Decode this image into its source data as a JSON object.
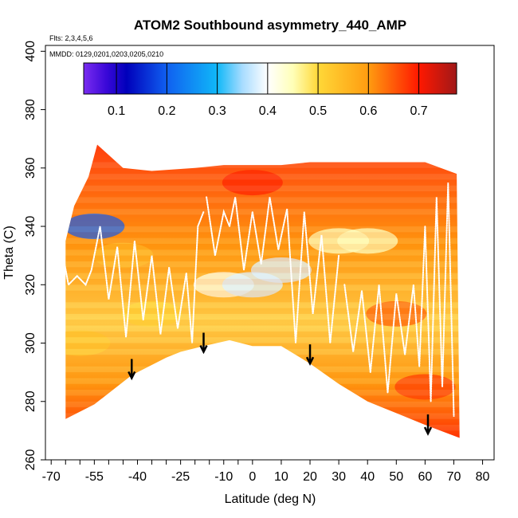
{
  "chart_data": {
    "type": "heatmap",
    "title": "ATOM2 Southbound asymmetry_440_AMP",
    "subtitle_flights": "Flts: 2,3,4,5,6",
    "subtitle_dates": "MMDD: 0129,0201,0203,0205,0210",
    "xlabel": "Latitude (deg N)",
    "ylabel": "Theta (C)",
    "xlim": [
      -72,
      84
    ],
    "ylim": [
      260,
      402
    ],
    "x_ticks": [
      -70,
      -55,
      -40,
      -25,
      -10,
      0,
      10,
      20,
      30,
      40,
      50,
      60,
      70,
      80
    ],
    "x_tick_labels": [
      "-70",
      "-55",
      "-40",
      "-25",
      "-10",
      "0",
      "10",
      "20",
      "30",
      "40",
      "50",
      "60",
      "70",
      "80"
    ],
    "x_minor_ticks": [
      -65,
      -60,
      -50,
      -45,
      -35,
      -30,
      -20,
      -15,
      -5
    ],
    "y_ticks": [
      260,
      280,
      300,
      320,
      340,
      360,
      380,
      400
    ],
    "y_tick_labels": [
      "260",
      "280",
      "300",
      "320",
      "340",
      "360",
      "380",
      "400"
    ],
    "colorbar": {
      "min": 0.035,
      "max": 0.775,
      "ticks": [
        0.1,
        0.2,
        0.3,
        0.4,
        0.5,
        0.6,
        0.7
      ],
      "tick_labels": [
        "0.1",
        "0.2",
        "0.3",
        "0.4",
        "0.5",
        "0.6",
        "0.7"
      ],
      "stops": [
        {
          "v": 0.035,
          "c": "#7a2cf0"
        },
        {
          "v": 0.08,
          "c": "#3a08d8"
        },
        {
          "v": 0.12,
          "c": "#0000bb"
        },
        {
          "v": 0.2,
          "c": "#1060f0"
        },
        {
          "v": 0.3,
          "c": "#10b8f8"
        },
        {
          "v": 0.35,
          "c": "#a8dcff"
        },
        {
          "v": 0.4,
          "c": "#ffffff"
        },
        {
          "v": 0.45,
          "c": "#ffffb8"
        },
        {
          "v": 0.5,
          "c": "#ffd838"
        },
        {
          "v": 0.6,
          "c": "#ff9c10"
        },
        {
          "v": 0.7,
          "c": "#ff1800"
        },
        {
          "v": 0.775,
          "c": "#a01818"
        }
      ]
    },
    "data_region": {
      "lower_boundary": [
        [
          -65,
          274
        ],
        [
          -55,
          279
        ],
        [
          -42,
          289
        ],
        [
          -30,
          295
        ],
        [
          -25,
          297
        ],
        [
          -17,
          299
        ],
        [
          -8,
          301
        ],
        [
          0,
          299
        ],
        [
          10,
          299
        ],
        [
          20,
          293
        ],
        [
          30,
          286
        ],
        [
          40,
          280
        ],
        [
          50,
          276
        ],
        [
          60,
          272
        ],
        [
          72,
          267.5
        ]
      ],
      "upper_boundary": [
        [
          -65,
          335
        ],
        [
          -62,
          347
        ],
        [
          -57,
          357
        ],
        [
          -54,
          368
        ],
        [
          -45,
          360
        ],
        [
          -35,
          359
        ],
        [
          -20,
          360
        ],
        [
          -10,
          361
        ],
        [
          0,
          361
        ],
        [
          10,
          361
        ],
        [
          20,
          362
        ],
        [
          30,
          362
        ],
        [
          40,
          362
        ],
        [
          50,
          362
        ],
        [
          60,
          362
        ],
        [
          71,
          358
        ]
      ]
    },
    "field_samples": [
      {
        "lat": -60,
        "theta": 300,
        "value": 0.52
      },
      {
        "lat": -55,
        "theta": 340,
        "value": 0.2
      },
      {
        "lat": -45,
        "theta": 330,
        "value": 0.55
      },
      {
        "lat": -35,
        "theta": 310,
        "value": 0.5
      },
      {
        "lat": -10,
        "theta": 320,
        "value": 0.42
      },
      {
        "lat": 0,
        "theta": 320,
        "value": 0.38
      },
      {
        "lat": 10,
        "theta": 325,
        "value": 0.38
      },
      {
        "lat": 30,
        "theta": 335,
        "value": 0.45
      },
      {
        "lat": 40,
        "theta": 335,
        "value": 0.45
      },
      {
        "lat": 50,
        "theta": 310,
        "value": 0.64
      },
      {
        "lat": 60,
        "theta": 285,
        "value": 0.67
      },
      {
        "lat": 0,
        "theta": 355,
        "value": 0.69
      }
    ],
    "arrows": [
      {
        "lat": -42,
        "theta": 288
      },
      {
        "lat": -17,
        "theta": 297
      },
      {
        "lat": 20,
        "theta": 293
      },
      {
        "lat": 61,
        "theta": 269
      }
    ],
    "flight_tracks": [
      {
        "name": "track-west",
        "points": [
          [
            -67,
            336
          ],
          [
            -64,
            320
          ],
          [
            -61,
            323
          ],
          [
            -58,
            320
          ],
          [
            -56,
            325
          ],
          [
            -53,
            340
          ],
          [
            -50,
            315
          ],
          [
            -47,
            333
          ],
          [
            -44,
            302
          ],
          [
            -41,
            335
          ],
          [
            -38,
            308
          ],
          [
            -35,
            330
          ],
          [
            -32,
            303
          ],
          [
            -29,
            326
          ],
          [
            -26,
            305
          ],
          [
            -23,
            324
          ],
          [
            -21,
            300
          ],
          [
            -19,
            340
          ],
          [
            -17,
            345
          ]
        ]
      },
      {
        "name": "track-central",
        "points": [
          [
            -16,
            350
          ],
          [
            -13,
            330
          ],
          [
            -10,
            345
          ],
          [
            -8,
            340
          ],
          [
            -6,
            350
          ],
          [
            -3,
            325
          ],
          [
            0,
            345
          ],
          [
            3,
            327
          ],
          [
            6,
            350
          ],
          [
            9,
            332
          ],
          [
            12,
            346
          ],
          [
            15,
            300
          ],
          [
            18,
            345
          ],
          [
            21,
            310
          ],
          [
            24,
            337
          ],
          [
            27,
            300
          ],
          [
            30,
            330
          ]
        ]
      },
      {
        "name": "track-east",
        "points": [
          [
            32,
            320
          ],
          [
            35,
            297
          ],
          [
            38,
            318
          ],
          [
            41,
            290
          ],
          [
            44,
            320
          ],
          [
            47,
            283
          ],
          [
            50,
            317
          ],
          [
            53,
            296
          ],
          [
            56,
            320
          ],
          [
            58,
            292
          ],
          [
            60,
            340
          ],
          [
            62,
            280
          ],
          [
            64,
            350
          ],
          [
            66,
            285
          ],
          [
            68,
            355
          ],
          [
            70,
            275
          ]
        ]
      }
    ]
  }
}
